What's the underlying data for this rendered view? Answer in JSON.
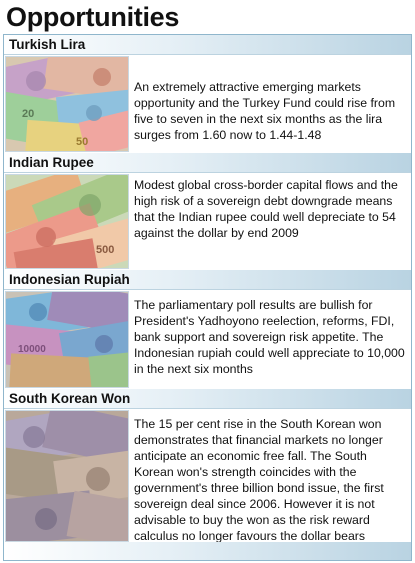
{
  "page": {
    "title": "Opportunities"
  },
  "sections": [
    {
      "heading": "Turkish Lira",
      "image": "turkish-lira-banknotes",
      "body": "An extremely attractive emerging markets opportunity and the Turkey Fund could rise from five to seven in the next six months as the lira surges from 1.60 now to 1.44-1.48"
    },
    {
      "heading": "Indian Rupee",
      "image": "indian-rupee-banknotes",
      "body": "Modest global cross-border capital flows and the high risk of a sovereign debt downgrade means that the Indian rupee could well depreciate to 54 against the dollar by end 2009"
    },
    {
      "heading": "Indonesian Rupiah",
      "image": "indonesian-rupiah-banknotes",
      "body": "The parliamentary poll results are bullish for President's Yadhoyono reelection, reforms, FDI, bank support and sovereign risk appetite. The Indonesian rupiah could well appreciate to 10,000 in the next six months"
    },
    {
      "heading": "South Korean Won",
      "image": "south-korean-won-banknotes",
      "body": "The 15 per cent rise in the South Korean won demonstrates that financial markets no longer anticipate an economic free fall. The South Korean won's strength coincides with the government's three billion bond issue, the first sovereign deal since 2006. However it is not advisable to buy the won as the risk reward calculus no longer favours the dollar bears"
    }
  ]
}
